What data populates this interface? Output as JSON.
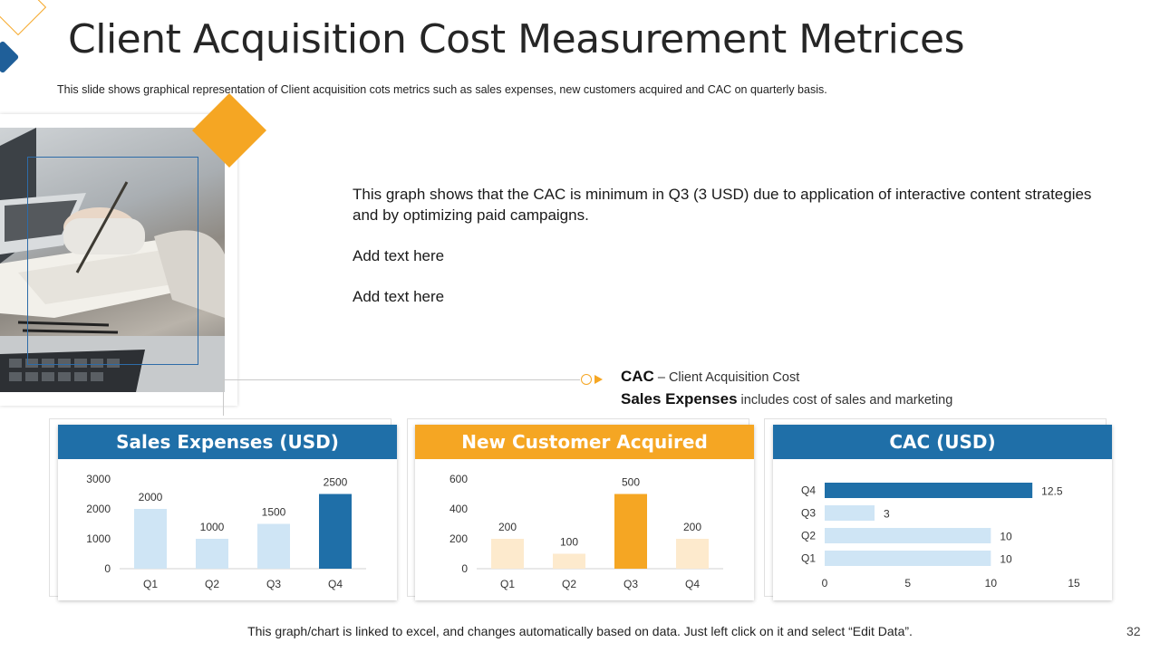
{
  "slide": {
    "title": "Client Acquisition Cost Measurement Metrices",
    "subtitle": "This slide shows graphical representation of Client acquisition cots metrics such as sales expenses, new customers acquired and CAC on quarterly basis.",
    "body": [
      "This graph shows that the CAC is minimum in Q3 (3 USD) due to application of interactive content strategies and by optimizing paid campaigns.",
      "Add text here",
      "Add text here"
    ],
    "legend": {
      "cac_term": "CAC",
      "cac_desc": " – Client Acquisition Cost",
      "sales_term": "Sales Expenses",
      "sales_desc": " includes cost of sales and marketing"
    },
    "footer": "This graph/chart is linked to excel, and changes automatically based on data.  Just left click on it and select “Edit Data”.",
    "page_number": "32"
  },
  "colors": {
    "blue_dark": "#1f6fa8",
    "blue_light": "#cfe5f5",
    "orange": "#f5a623",
    "orange_light": "#fdeacd",
    "header_blue": "#1f6fa8",
    "header_orange": "#f5a623"
  },
  "chart_data": [
    {
      "type": "bar",
      "title": "Sales Expenses (USD)",
      "categories": [
        "Q1",
        "Q2",
        "Q3",
        "Q4"
      ],
      "values": [
        2000,
        1000,
        1500,
        2500
      ],
      "highlight_index": 3,
      "ylim": [
        0,
        3000
      ],
      "yticks": [
        0,
        1000,
        2000,
        3000
      ],
      "xlabel": "",
      "ylabel": ""
    },
    {
      "type": "bar",
      "title": "New Customer Acquired",
      "categories": [
        "Q1",
        "Q2",
        "Q3",
        "Q4"
      ],
      "values": [
        200,
        100,
        500,
        200
      ],
      "highlight_index": 2,
      "ylim": [
        0,
        600
      ],
      "yticks": [
        0,
        200,
        400,
        600
      ],
      "xlabel": "",
      "ylabel": ""
    },
    {
      "type": "bar",
      "orientation": "horizontal",
      "title": "CAC (USD)",
      "categories": [
        "Q1",
        "Q2",
        "Q3",
        "Q4"
      ],
      "values": [
        10,
        10,
        3,
        12.5
      ],
      "highlight_index": 3,
      "xlim": [
        0,
        15
      ],
      "xticks": [
        0,
        5,
        10,
        15
      ],
      "xlabel": "",
      "ylabel": ""
    }
  ]
}
